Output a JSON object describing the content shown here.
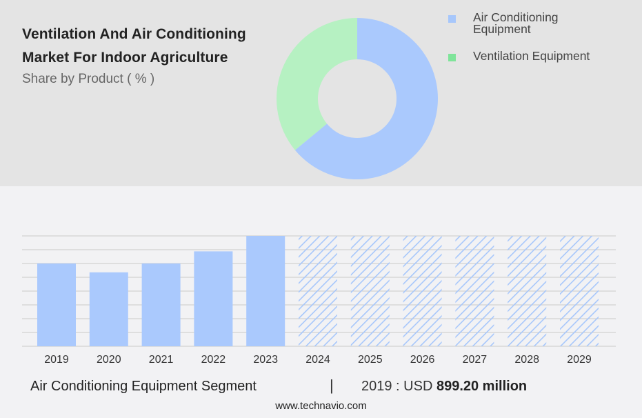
{
  "header": {
    "title_line1": "Ventilation And Air Conditioning",
    "title_line2": "Market For Indoor Agriculture",
    "subtitle": "Share by Product ( % )"
  },
  "colors": {
    "blue": "#aac9fd",
    "green": "#b6f1c2",
    "legend_blue": "#a7c7fb",
    "legend_green": "#7fe49a",
    "grid": "#c9c9c9",
    "hatch": "#a7c7fb"
  },
  "chart_data": [
    {
      "type": "pie",
      "style": "donut",
      "slices": [
        {
          "label": "Air Conditioning Equipment",
          "value": 64
        },
        {
          "label": "Ventilation Equipment",
          "value": 36
        }
      ],
      "legend_placement": "right"
    },
    {
      "type": "bar",
      "categories": [
        "2019",
        "2020",
        "2021",
        "2022",
        "2023",
        "2024",
        "2025",
        "2026",
        "2027",
        "2028",
        "2029"
      ],
      "values": [
        75,
        67,
        75,
        86,
        100,
        100,
        100,
        100,
        100,
        100,
        100
      ],
      "forecast_from": "2024",
      "ylim": [
        0,
        100
      ],
      "grid": true,
      "xlabel": "",
      "ylabel": ""
    }
  ],
  "footer": {
    "segment": "Air Conditioning Equipment Segment",
    "separator": "|",
    "value_prefix": "2019 : USD",
    "value": "899.20 million",
    "site": "www.technavio.com"
  }
}
